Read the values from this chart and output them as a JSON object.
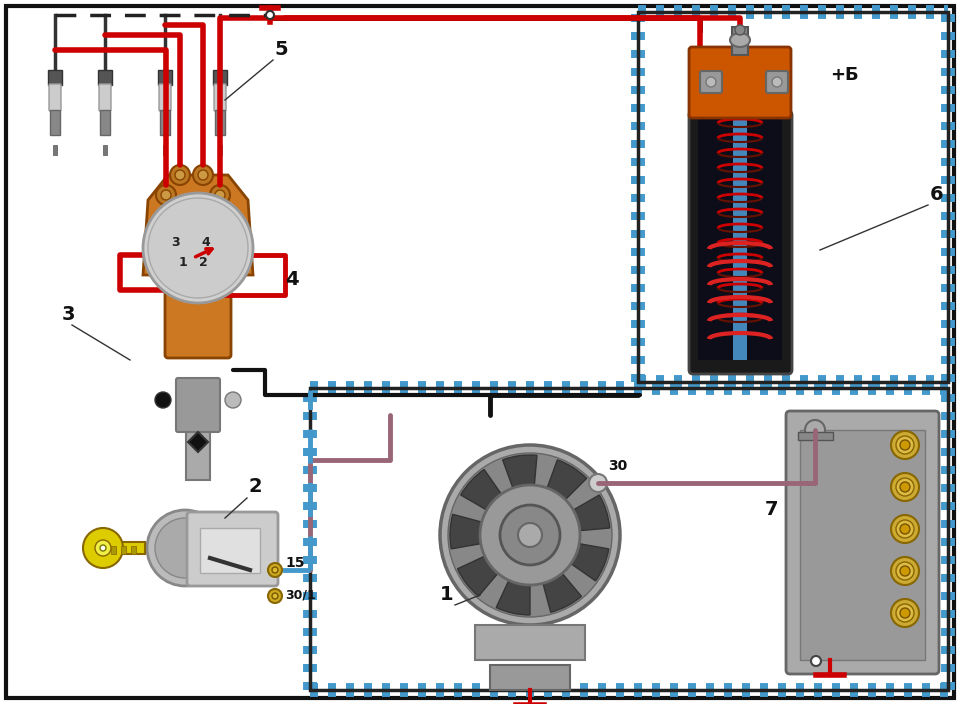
{
  "bg_color": "#ffffff",
  "red_wire": "#cc0000",
  "pink_wire": "#996677",
  "orange_color": "#cc5500",
  "gold_color": "#ccaa00",
  "blue_stripe": "#4499cc",
  "label_fontsize": 14,
  "anno_fontsize": 11
}
